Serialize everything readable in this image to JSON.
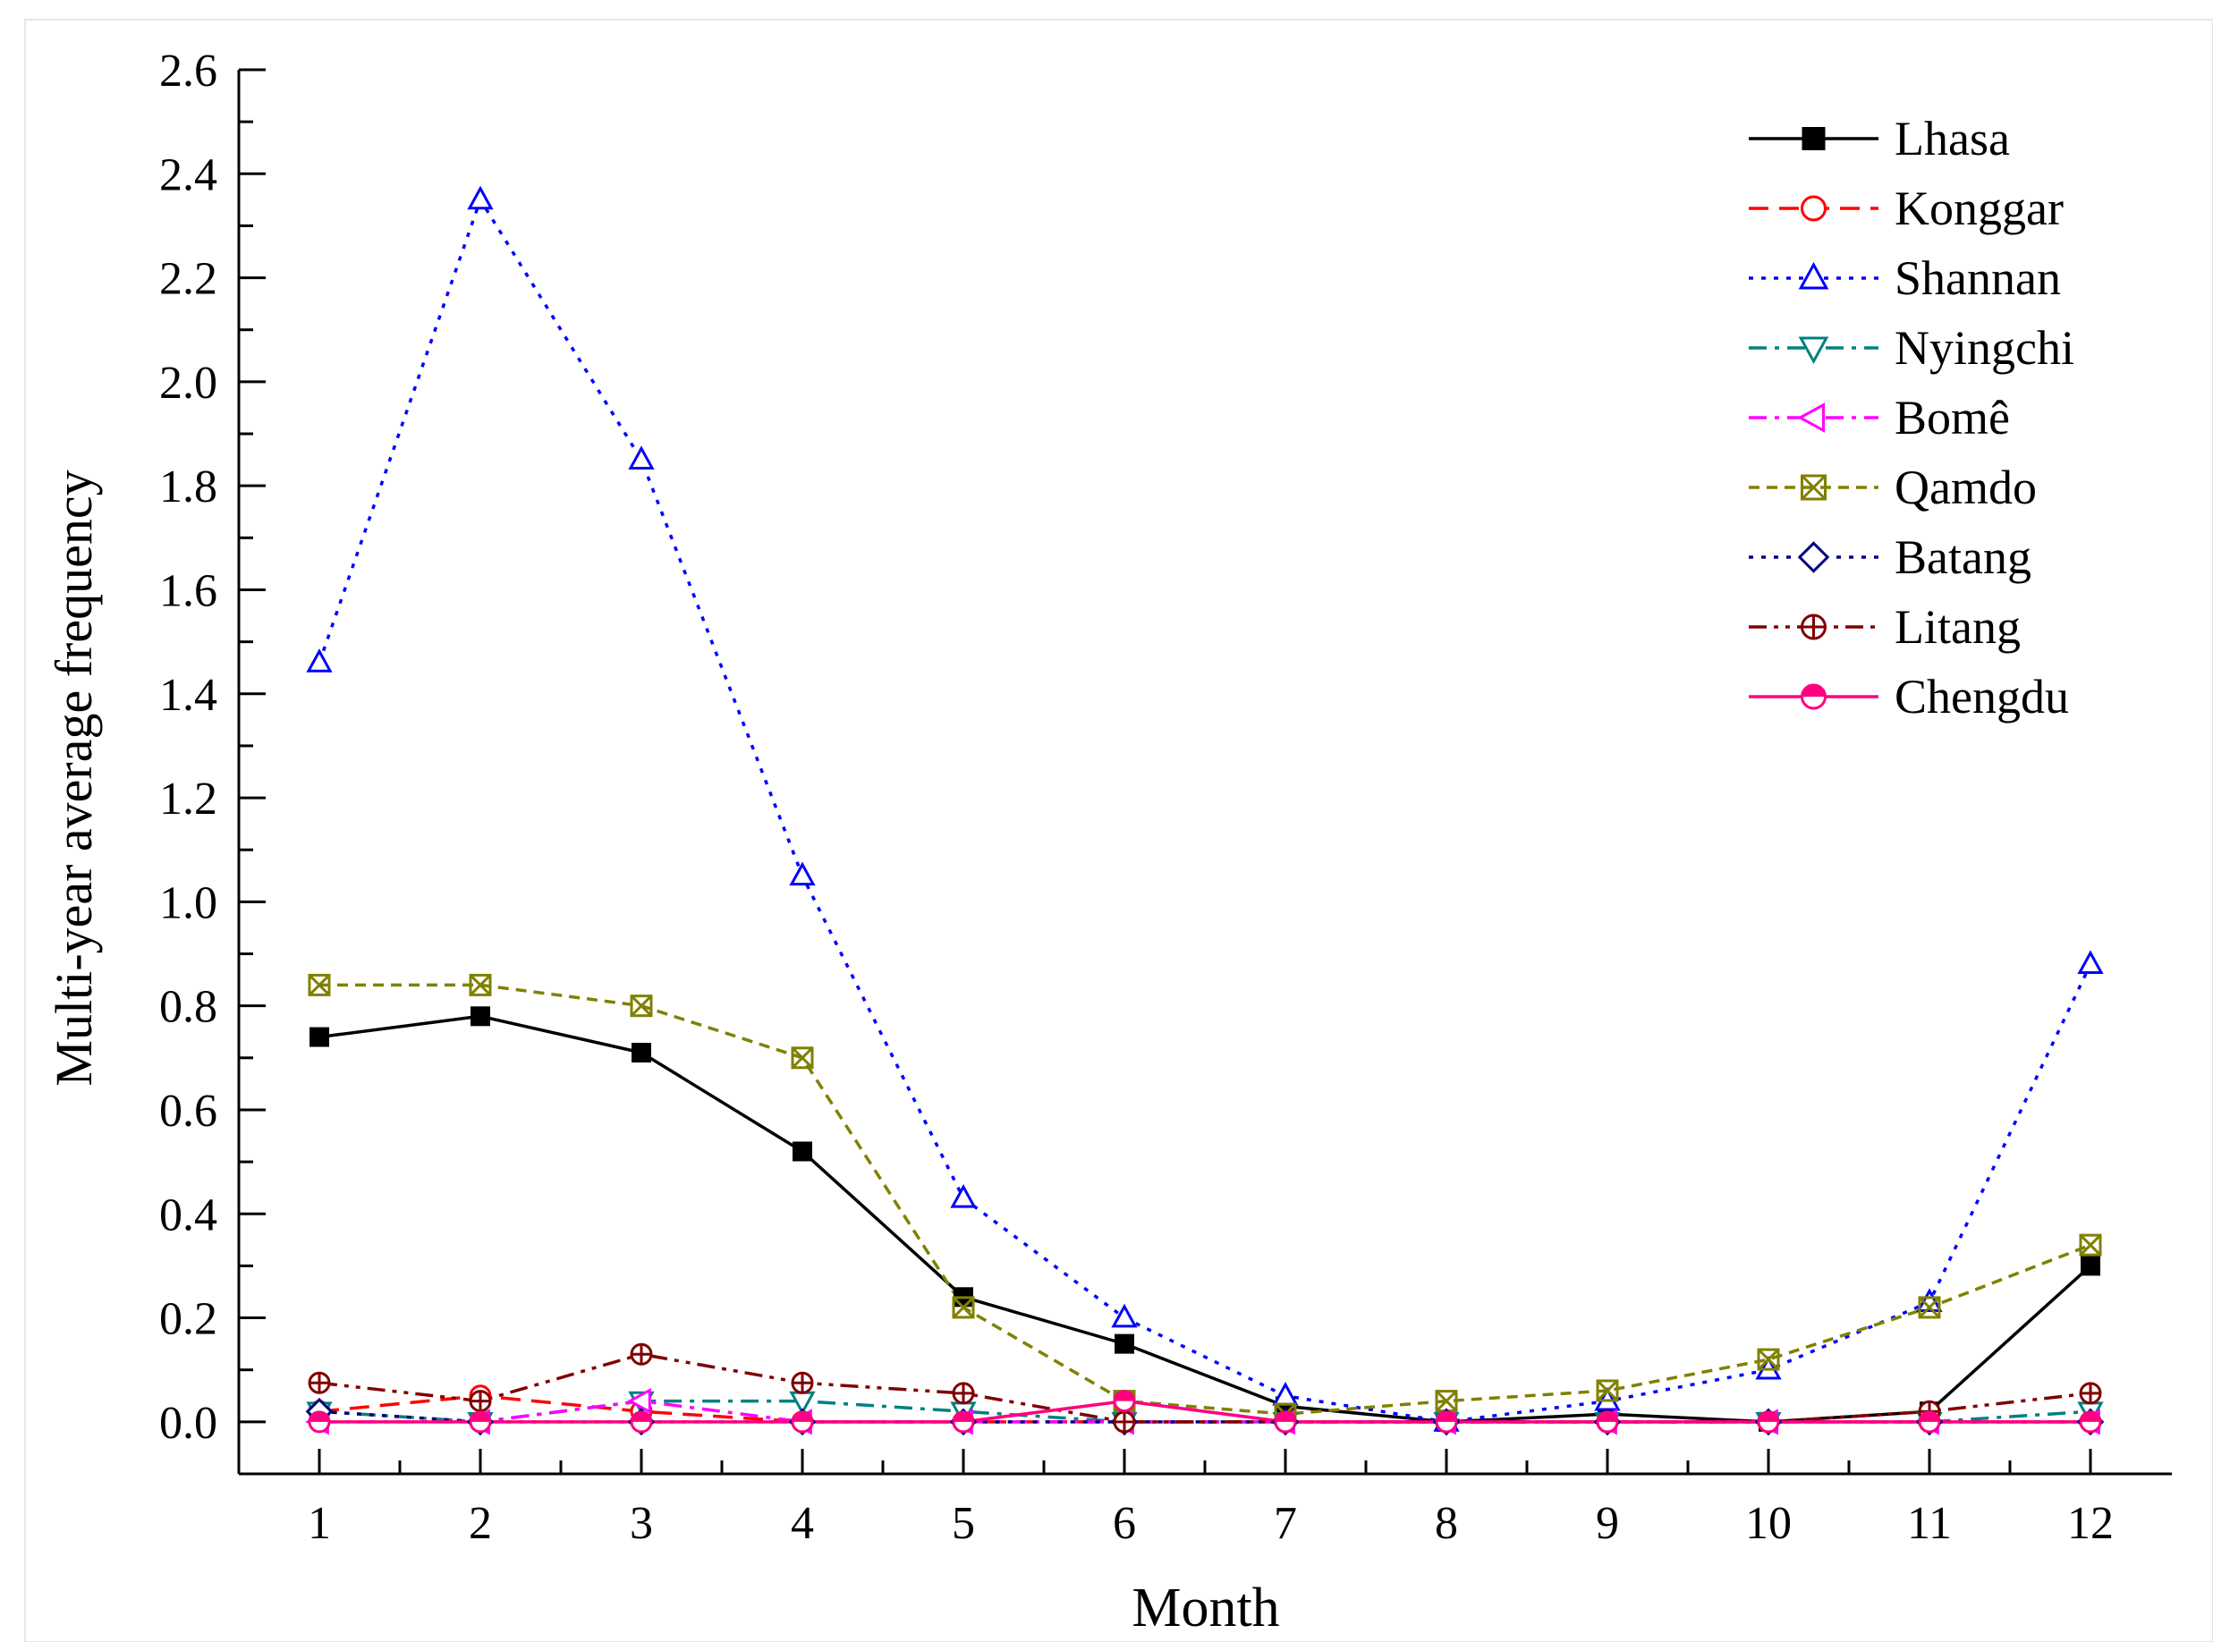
{
  "chart_data": {
    "type": "line",
    "title": "",
    "xlabel": "Month",
    "ylabel": "Multi-year average frequency",
    "categories": [
      1,
      2,
      3,
      4,
      5,
      6,
      7,
      8,
      9,
      10,
      11,
      12
    ],
    "xlim": [
      0.5,
      12.5
    ],
    "ylim": [
      -0.1,
      2.6
    ],
    "yticks": [
      "0.0",
      "0.2",
      "0.4",
      "0.6",
      "0.8",
      "1.0",
      "1.2",
      "1.4",
      "1.6",
      "1.8",
      "2.0",
      "2.2",
      "2.4",
      "2.6"
    ],
    "xticks": [
      "1",
      "2",
      "3",
      "4",
      "5",
      "6",
      "7",
      "8",
      "9",
      "10",
      "11",
      "12"
    ],
    "legend_position": "top-right",
    "grid": false,
    "series": [
      {
        "name": "Lhasa",
        "color": "#000000",
        "dash": "solid",
        "marker": "square-filled",
        "values": [
          0.74,
          0.78,
          0.71,
          0.52,
          0.24,
          0.15,
          0.03,
          0.0,
          0.015,
          0.0,
          0.02,
          0.3
        ]
      },
      {
        "name": "Konggar",
        "color": "#ff0000",
        "dash": "dashed",
        "marker": "circle-open",
        "values": [
          0.02,
          0.05,
          0.02,
          0.0,
          0.0,
          0.0,
          0.0,
          0.0,
          0.0,
          0.0,
          0.0,
          0.0
        ]
      },
      {
        "name": "Shannan",
        "color": "#0000ff",
        "dash": "dotted",
        "marker": "triangle-up-open",
        "values": [
          1.46,
          2.35,
          1.85,
          1.05,
          0.43,
          0.2,
          0.05,
          0.0,
          0.04,
          0.1,
          0.23,
          0.88
        ]
      },
      {
        "name": "Nyingchi",
        "color": "#008080",
        "dash": "dashdot",
        "marker": "triangle-down-open",
        "values": [
          0.02,
          0.0,
          0.04,
          0.04,
          0.02,
          0.0,
          0.0,
          0.0,
          0.0,
          0.0,
          0.0,
          0.02
        ]
      },
      {
        "name": "Bomê",
        "color": "#ff00ff",
        "dash": "dashdot",
        "marker": "triangle-left-open",
        "values": [
          0.0,
          0.0,
          0.04,
          0.0,
          0.0,
          0.0,
          0.0,
          0.0,
          0.0,
          0.0,
          0.0,
          0.0
        ]
      },
      {
        "name": "Qamdo",
        "color": "#808000",
        "dash": "shortdash",
        "marker": "x-square",
        "values": [
          0.84,
          0.84,
          0.8,
          0.7,
          0.22,
          0.04,
          0.015,
          0.04,
          0.06,
          0.12,
          0.22,
          0.34
        ]
      },
      {
        "name": "Batang",
        "color": "#000080",
        "dash": "dotted",
        "marker": "diamond-open",
        "values": [
          0.02,
          0.0,
          0.0,
          0.0,
          0.0,
          0.0,
          0.0,
          0.0,
          0.0,
          0.0,
          0.0,
          0.0
        ]
      },
      {
        "name": "Litang",
        "color": "#800000",
        "dash": "dashdotdot",
        "marker": "circle-plus",
        "values": [
          0.075,
          0.04,
          0.13,
          0.075,
          0.055,
          0.0,
          0.0,
          0.0,
          0.0,
          0.0,
          0.02,
          0.055
        ]
      },
      {
        "name": "Chengdu",
        "color": "#ff0080",
        "dash": "solid",
        "marker": "circle-half",
        "values": [
          0.0,
          0.0,
          0.0,
          0.0,
          0.0,
          0.04,
          0.0,
          0.0,
          0.0,
          0.0,
          0.0,
          0.0
        ]
      }
    ]
  }
}
